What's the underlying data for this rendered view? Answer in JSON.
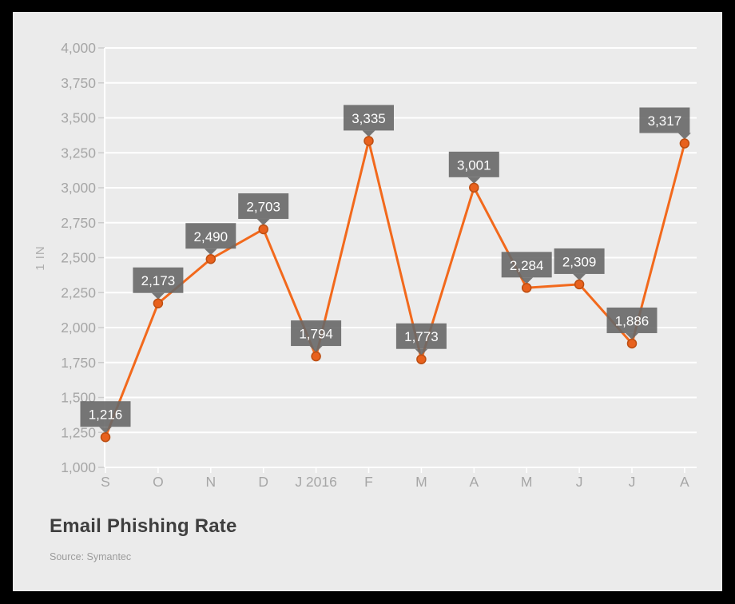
{
  "window": {
    "frame_color": "#000000",
    "canvas_color": "#ebebeb"
  },
  "header": {
    "title": "Email Phishing Rate",
    "source": "Source: Symantec"
  },
  "chart_data": {
    "type": "line",
    "title": "Email Phishing Rate",
    "source": "Source: Symantec",
    "series_name": "Email Phishing Rate",
    "xlabel": "",
    "ylabel": "1 IN",
    "categories": [
      "S",
      "O",
      "N",
      "D",
      "J 2016",
      "F",
      "M",
      "A",
      "M",
      "J",
      "J",
      "A"
    ],
    "values": [
      1216,
      2173,
      2490,
      2703,
      1794,
      3335,
      1773,
      3001,
      2284,
      2309,
      1886,
      3317
    ],
    "point_labels": [
      "1,216",
      "2,173",
      "2,490",
      "2,703",
      "1,794",
      "3,335",
      "1,773",
      "3,001",
      "2,284",
      "2,309",
      "1,886",
      "3,317"
    ],
    "ylim": [
      1000,
      4000
    ],
    "ytick_step": 250,
    "ytick_labels": [
      "1,000",
      "1,250",
      "1,500",
      "1,750",
      "2,000",
      "2,250",
      "2,500",
      "2,750",
      "3,000",
      "3,250",
      "3,500",
      "3,750",
      "4,000"
    ],
    "grid": true,
    "legend": false,
    "legend_position": "none",
    "colors": {
      "line": "#f2691c",
      "marker_fill": "#e8611d",
      "marker_stroke": "#bc4e12",
      "label_bg": "#686868",
      "label_text": "#ffffff",
      "axis_text": "#a6a6a6",
      "gridline": "#ffffff",
      "tick": "#cccccc"
    },
    "label_x_offsets": [
      0,
      0,
      0,
      0,
      0,
      0,
      0,
      0,
      0,
      0,
      0,
      -25
    ]
  }
}
